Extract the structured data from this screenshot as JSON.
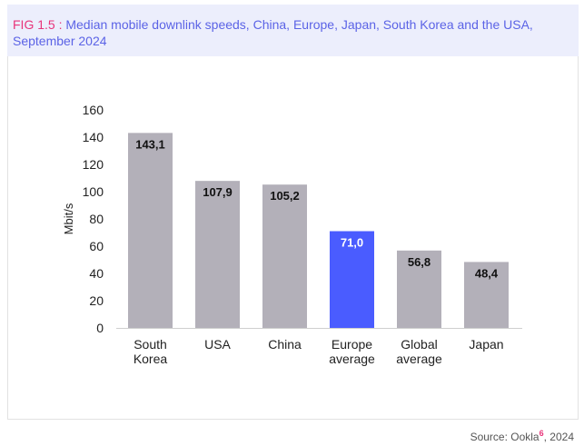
{
  "header": {
    "fig_label": "FIG 1.5 :",
    "title": "Median mobile downlink speeds, China, Europe, Japan, South Korea and the USA, September 2024"
  },
  "source": {
    "text": "Source: Ookla",
    "sup": "6",
    "year": ", 2024"
  },
  "chart_data": {
    "type": "bar",
    "title": "Median mobile downlink speeds, China, Europe, Japan, South Korea and the USA, September 2024",
    "categories": [
      [
        "South",
        "Korea"
      ],
      [
        "USA"
      ],
      [
        "China"
      ],
      [
        "Europe",
        "average"
      ],
      [
        "Global",
        "average"
      ],
      [
        "Japan"
      ]
    ],
    "values": [
      143.1,
      107.9,
      105.2,
      71.0,
      56.8,
      48.4
    ],
    "value_labels": [
      "143,1",
      "107,9",
      "105,2",
      "71,0",
      "56,8",
      "48,4"
    ],
    "highlight_index": 3,
    "ylabel": "Mbit/s",
    "xlabel": "",
    "ylim": [
      0,
      160
    ],
    "yticks": [
      0,
      20,
      40,
      60,
      80,
      100,
      120,
      140,
      160
    ],
    "grid": false,
    "colors": {
      "bar": "#b3b0b9",
      "highlight": "#4a5cff",
      "label": "#111111",
      "highlight_label": "#ffffff"
    }
  }
}
